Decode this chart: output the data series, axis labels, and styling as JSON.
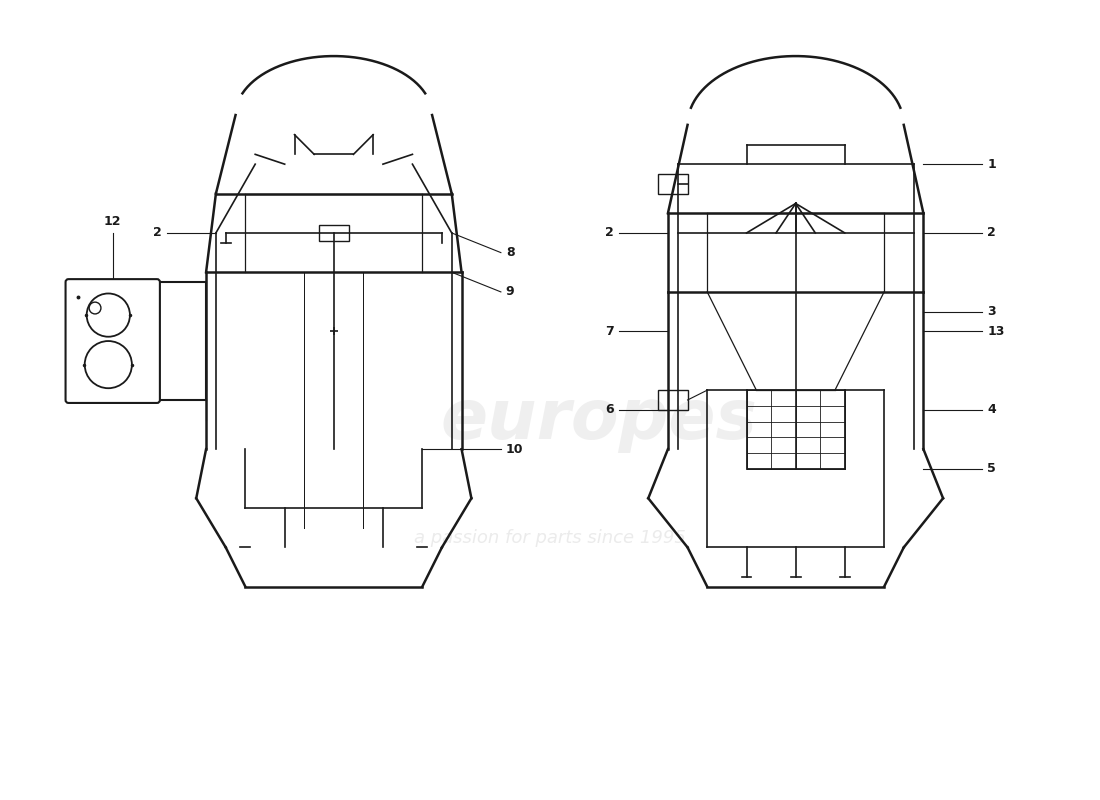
{
  "background_color": "#ffffff",
  "line_color": "#1a1a1a",
  "fig_width": 11.0,
  "fig_height": 8.0,
  "dpi": 100
}
